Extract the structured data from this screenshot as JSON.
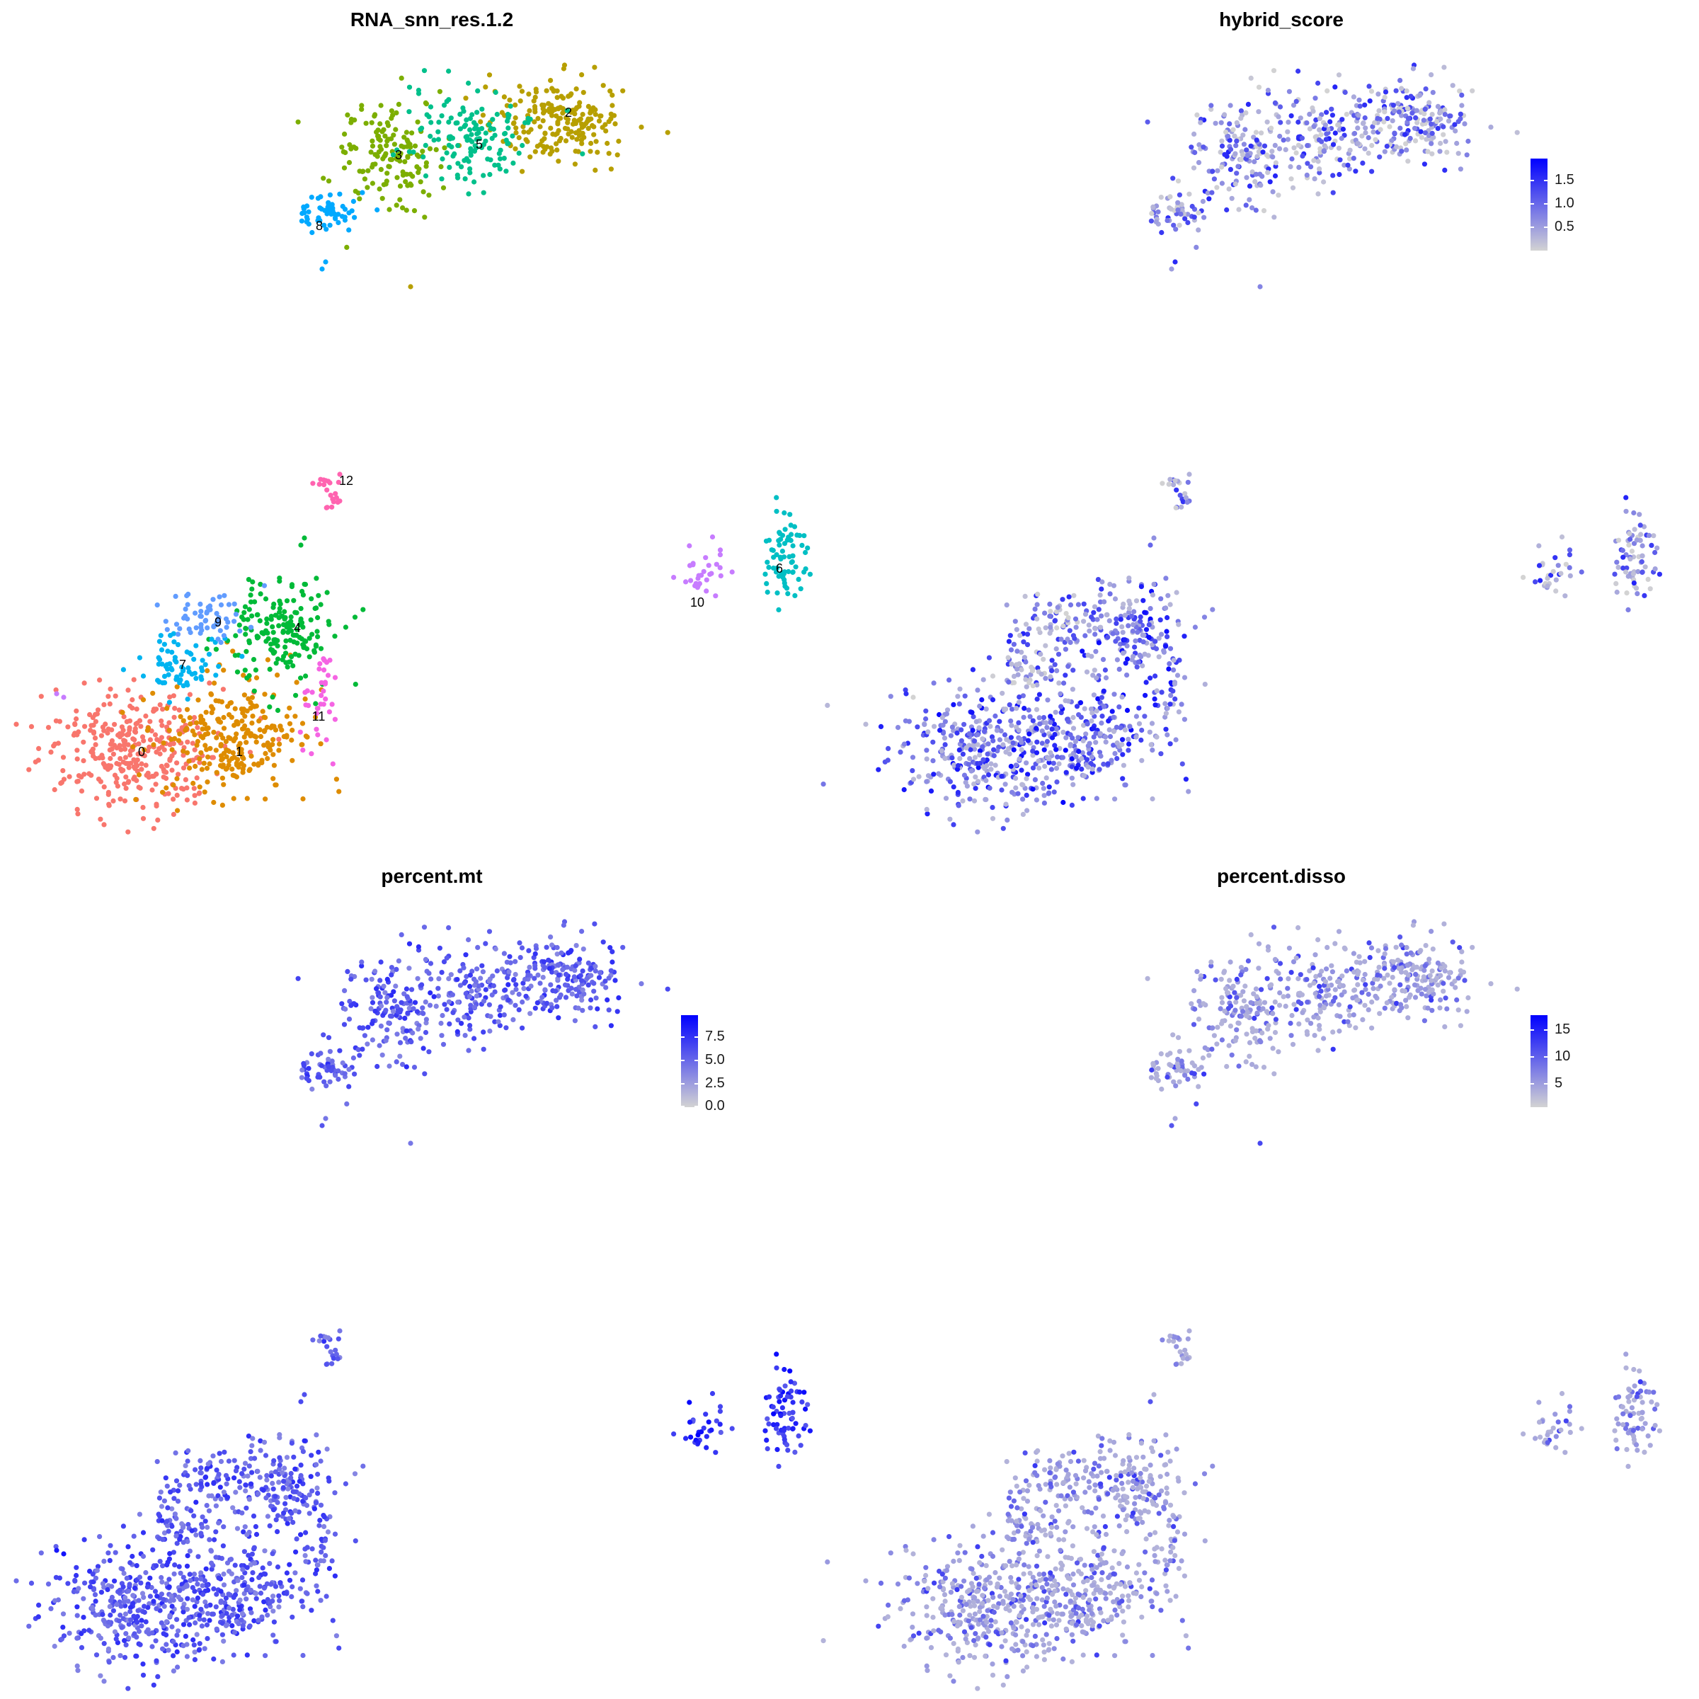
{
  "chart_data": [
    {
      "type": "scatter",
      "title": "RNA_snn_res.1.2",
      "xlabel": "",
      "ylabel": "",
      "color_by": "cluster",
      "cluster_labels": [
        "0",
        "1",
        "2",
        "3",
        "4",
        "5",
        "6",
        "7",
        "8",
        "9",
        "10",
        "11",
        "12"
      ],
      "cluster_colors": {
        "0": "#F8766D",
        "1": "#DE8C00",
        "2": "#B79F00",
        "3": "#7CAE00",
        "4": "#00BA38",
        "5": "#00C08B",
        "6": "#00BFC4",
        "7": "#00B4F0",
        "8": "#00A9FF",
        "9": "#619CFF",
        "10": "#C77CFF",
        "11": "#F564E3",
        "12": "#FF64B0"
      },
      "legend": "none"
    },
    {
      "type": "scatter",
      "title": "hybrid_score",
      "color_by": "continuous",
      "legend": {
        "placement": "right",
        "ticks": [
          "1.5",
          "1.0",
          "0.5"
        ],
        "low_color": "#D3D3D3",
        "high_color": "#0000FF"
      }
    },
    {
      "type": "scatter",
      "title": "percent.mt",
      "color_by": "continuous",
      "legend": {
        "placement": "right",
        "ticks": [
          "7.5",
          "5.0",
          "2.5",
          "0.0"
        ],
        "low_color": "#D3D3D3",
        "high_color": "#0000FF"
      }
    },
    {
      "type": "scatter",
      "title": "percent.disso",
      "color_by": "continuous",
      "legend": {
        "placement": "right",
        "ticks": [
          "15",
          "10",
          "5"
        ],
        "low_color": "#D3D3D3",
        "high_color": "#0000FF"
      }
    }
  ]
}
